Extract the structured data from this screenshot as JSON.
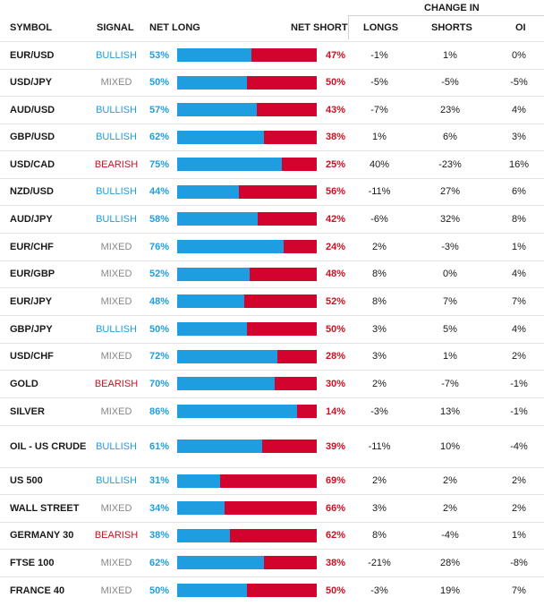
{
  "headers": {
    "symbol": "SYMBOL",
    "signal": "SIGNAL",
    "net_long": "NET LONG",
    "net_short": "NET SHORT",
    "change_in": "CHANGE IN",
    "longs": "LONGS",
    "shorts": "SHORTS",
    "oi": "OI"
  },
  "colors": {
    "long": "#1e9de0",
    "short": "#d2042d",
    "mixed": "#888888"
  },
  "rows": [
    {
      "symbol": "EUR/USD",
      "signal": "BULLISH",
      "net_long": "53%",
      "net_short": "47%",
      "longs": "-1%",
      "shorts": "1%",
      "oi": "0%"
    },
    {
      "symbol": "USD/JPY",
      "signal": "MIXED",
      "net_long": "50%",
      "net_short": "50%",
      "longs": "-5%",
      "shorts": "-5%",
      "oi": "-5%"
    },
    {
      "symbol": "AUD/USD",
      "signal": "BULLISH",
      "net_long": "57%",
      "net_short": "43%",
      "longs": "-7%",
      "shorts": "23%",
      "oi": "4%"
    },
    {
      "symbol": "GBP/USD",
      "signal": "BULLISH",
      "net_long": "62%",
      "net_short": "38%",
      "longs": "1%",
      "shorts": "6%",
      "oi": "3%"
    },
    {
      "symbol": "USD/CAD",
      "signal": "BEARISH",
      "net_long": "75%",
      "net_short": "25%",
      "longs": "40%",
      "shorts": "-23%",
      "oi": "16%"
    },
    {
      "symbol": "NZD/USD",
      "signal": "BULLISH",
      "net_long": "44%",
      "net_short": "56%",
      "longs": "-11%",
      "shorts": "27%",
      "oi": "6%"
    },
    {
      "symbol": "AUD/JPY",
      "signal": "BULLISH",
      "net_long": "58%",
      "net_short": "42%",
      "longs": "-6%",
      "shorts": "32%",
      "oi": "8%"
    },
    {
      "symbol": "EUR/CHF",
      "signal": "MIXED",
      "net_long": "76%",
      "net_short": "24%",
      "longs": "2%",
      "shorts": "-3%",
      "oi": "1%"
    },
    {
      "symbol": "EUR/GBP",
      "signal": "MIXED",
      "net_long": "52%",
      "net_short": "48%",
      "longs": "8%",
      "shorts": "0%",
      "oi": "4%"
    },
    {
      "symbol": "EUR/JPY",
      "signal": "MIXED",
      "net_long": "48%",
      "net_short": "52%",
      "longs": "8%",
      "shorts": "7%",
      "oi": "7%"
    },
    {
      "symbol": "GBP/JPY",
      "signal": "BULLISH",
      "net_long": "50%",
      "net_short": "50%",
      "longs": "3%",
      "shorts": "5%",
      "oi": "4%"
    },
    {
      "symbol": "USD/CHF",
      "signal": "MIXED",
      "net_long": "72%",
      "net_short": "28%",
      "longs": "3%",
      "shorts": "1%",
      "oi": "2%"
    },
    {
      "symbol": "GOLD",
      "signal": "BEARISH",
      "net_long": "70%",
      "net_short": "30%",
      "longs": "2%",
      "shorts": "-7%",
      "oi": "-1%"
    },
    {
      "symbol": "SILVER",
      "signal": "MIXED",
      "net_long": "86%",
      "net_short": "14%",
      "longs": "-3%",
      "shorts": "13%",
      "oi": "-1%"
    },
    {
      "symbol": "OIL - US CRUDE",
      "signal": "BULLISH",
      "net_long": "61%",
      "net_short": "39%",
      "longs": "-11%",
      "shorts": "10%",
      "oi": "-4%"
    },
    {
      "symbol": "US 500",
      "signal": "BULLISH",
      "net_long": "31%",
      "net_short": "69%",
      "longs": "2%",
      "shorts": "2%",
      "oi": "2%"
    },
    {
      "symbol": "WALL STREET",
      "signal": "MIXED",
      "net_long": "34%",
      "net_short": "66%",
      "longs": "3%",
      "shorts": "2%",
      "oi": "2%"
    },
    {
      "symbol": "GERMANY 30",
      "signal": "BEARISH",
      "net_long": "38%",
      "net_short": "62%",
      "longs": "8%",
      "shorts": "-4%",
      "oi": "1%"
    },
    {
      "symbol": "FTSE 100",
      "signal": "MIXED",
      "net_long": "62%",
      "net_short": "38%",
      "longs": "-21%",
      "shorts": "28%",
      "oi": "-8%"
    },
    {
      "symbol": "FRANCE 40",
      "signal": "MIXED",
      "net_long": "50%",
      "net_short": "50%",
      "longs": "-3%",
      "shorts": "19%",
      "oi": "7%"
    }
  ]
}
